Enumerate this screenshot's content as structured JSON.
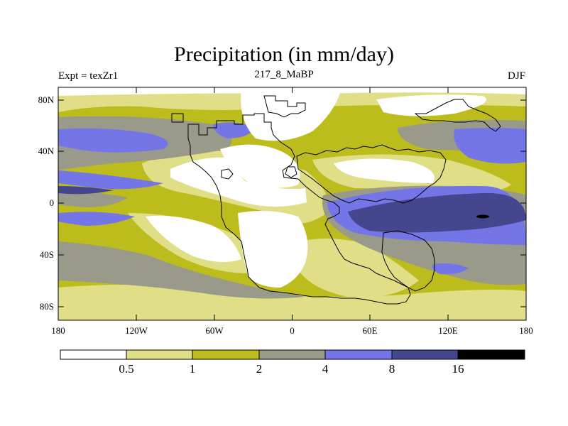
{
  "header": {
    "title": "Precipitation (in mm/day)",
    "left_label": "Expt = texZr1",
    "center_label": "217_8_MaBP",
    "right_label": "DJF"
  },
  "axes": {
    "x_ticks": [
      "180",
      "120W",
      "60W",
      "0",
      "60E",
      "120E",
      "180"
    ],
    "y_ticks": [
      "80N",
      "40N",
      "0",
      "40S",
      "80S"
    ]
  },
  "colorbar": {
    "levels": [
      "0.5",
      "1",
      "2",
      "4",
      "8",
      "16"
    ],
    "colors": [
      "#ffffff",
      "#e0df88",
      "#bdbc1d",
      "#9a9a8a",
      "#7476e8",
      "#44468e",
      "#000000"
    ]
  }
}
